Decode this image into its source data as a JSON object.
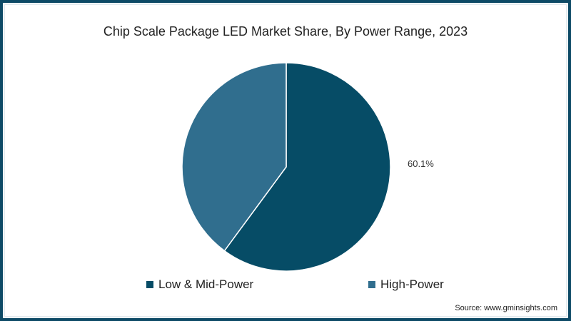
{
  "title": "Chip Scale Package LED Market Share, By Power Range, 2023",
  "colors": {
    "frame_border": "#0d4a66",
    "low_mid_power": "#064c66",
    "high_power": "#306e8e"
  },
  "legend": [
    {
      "label": "Low & Mid-Power",
      "color": "#064c66"
    },
    {
      "label": "High-Power",
      "color": "#306e8e"
    }
  ],
  "data_labels": {
    "low_mid_power": "60.1%"
  },
  "source": "Source: www.gminsights.com",
  "chart_data": {
    "type": "pie",
    "title": "Chip Scale Package LED Market Share, By Power Range, 2023",
    "categories": [
      "Low & Mid-Power",
      "High-Power"
    ],
    "values": [
      60.1,
      39.9
    ],
    "unit": "%",
    "colors": [
      "#064c66",
      "#306e8e"
    ],
    "start_angle": "12 o'clock, clockwise",
    "data_labels_shown": [
      "60.1%"
    ],
    "legend_position": "bottom",
    "source": "Source: www.gminsights.com"
  }
}
